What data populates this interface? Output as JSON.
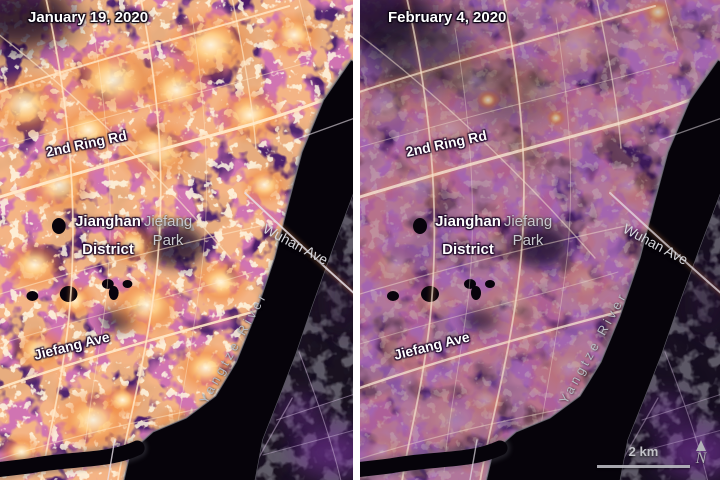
{
  "panels": [
    {
      "id": "january",
      "date": "January 19, 2020"
    },
    {
      "id": "february",
      "date": "February 4, 2020"
    }
  ],
  "map_labels": {
    "ring_road": "2nd Ring Rd",
    "district_line1": "Jianghan",
    "district_line2": "District",
    "park_line1": "Jiefang",
    "park_line2": "Park",
    "wuhan_ave": "Wuhan Ave",
    "river": "Yangtze River",
    "jiefang_ave": "Jiefang Ave"
  },
  "scale_bar": {
    "label": "2 km"
  },
  "north_indicator": {
    "label": "N"
  },
  "colors": {
    "city_lights_bright": "#ffe9c9",
    "city_lights_orange": "#f08038",
    "city_magenta": "#b03078",
    "night_purple_january": "#4c1866",
    "night_purple_february": "#341050",
    "river_black": "#06030a",
    "label_white": "#ffffff",
    "label_gray": "#c9c9cf",
    "scalebar_gray": "#b8b8bf",
    "divider_white": "#ffffff"
  }
}
